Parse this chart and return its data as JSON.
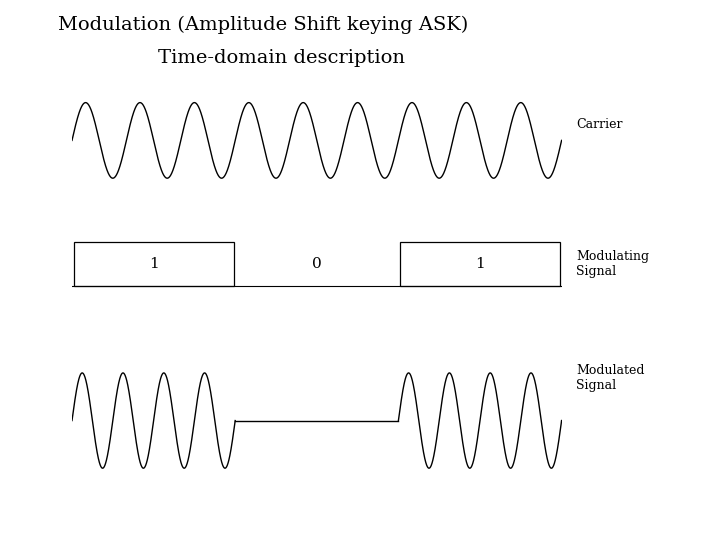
{
  "title_line1": "Modulation (Amplitude Shift keying ASK)",
  "title_line2": "Time-domain description",
  "title_fontsize": 14,
  "title_font": "serif",
  "background_color": "#ffffff",
  "line_color": "#000000",
  "label_carrier": "Carrier",
  "label_modulating": "Modulating\nSignal",
  "label_modulated": "Modulated\nSignal",
  "carrier_cycles": 9,
  "modulated_cycles_per_bit": 4,
  "bit_pattern": [
    1,
    0,
    1
  ],
  "t_total": 3.0,
  "carrier_amplitude": 0.7,
  "modulated_amplitude": 1.0,
  "fig_width": 7.2,
  "fig_height": 5.4,
  "dpi": 100
}
